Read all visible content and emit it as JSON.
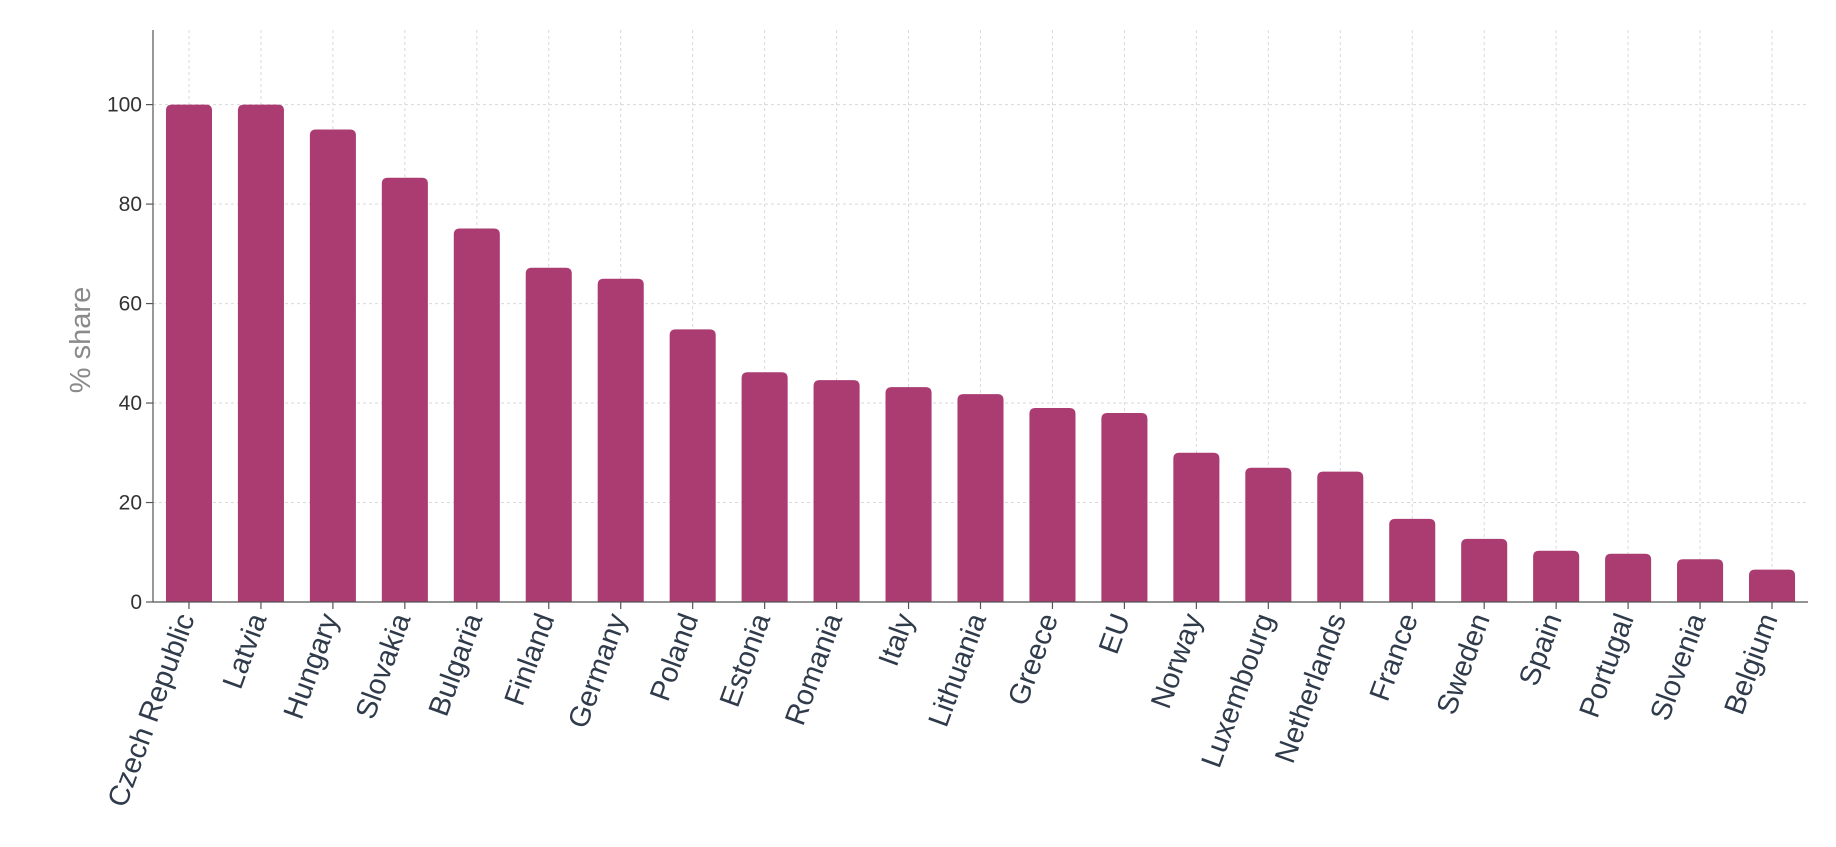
{
  "chart_data": {
    "type": "bar",
    "title": "",
    "xlabel": "",
    "ylabel": "% share",
    "ylim": [
      0,
      115
    ],
    "yticks": [
      0,
      20,
      40,
      60,
      80,
      100
    ],
    "grid": true,
    "bar_color": "#aa3c72",
    "categories": [
      "Czech Republic",
      "Latvia",
      "Hungary",
      "Slovakia",
      "Bulgaria",
      "Finland",
      "Germany",
      "Poland",
      "Estonia",
      "Romania",
      "Italy",
      "Lithuania",
      "Greece",
      "EU",
      "Norway",
      "Luxembourg",
      "Netherlands",
      "France",
      "Sweden",
      "Spain",
      "Portugal",
      "Slovenia",
      "Belgium"
    ],
    "values": [
      100,
      100,
      95,
      85.3,
      75.1,
      67.2,
      65,
      54.8,
      46.2,
      44.6,
      43.2,
      41.8,
      39,
      38,
      30,
      27,
      26.2,
      16.7,
      12.7,
      10.3,
      9.7,
      8.6,
      6.5
    ]
  }
}
